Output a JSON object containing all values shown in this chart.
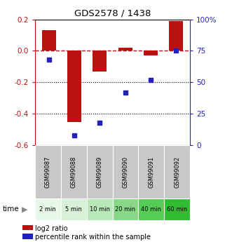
{
  "title": "GDS2578 / 1438",
  "samples": [
    "GSM99087",
    "GSM99088",
    "GSM99089",
    "GSM99090",
    "GSM99091",
    "GSM99092"
  ],
  "time_labels": [
    "2 min",
    "5 min",
    "10 min",
    "20 min",
    "40 min",
    "60 min"
  ],
  "log2_ratio": [
    0.13,
    -0.455,
    -0.13,
    0.018,
    -0.03,
    0.19
  ],
  "percentile_rank": [
    68,
    8,
    18,
    42,
    52,
    75
  ],
  "ylim_left": [
    -0.6,
    0.2
  ],
  "ylim_right": [
    0,
    100
  ],
  "yticks_left": [
    0.2,
    0.0,
    -0.2,
    -0.4,
    -0.6
  ],
  "yticks_right": [
    100,
    75,
    50,
    25,
    0
  ],
  "bar_color": "#bb1111",
  "dot_color": "#2222bb",
  "cell_color_gsm": "#c8c8c8",
  "cell_colors_time": [
    "#e8f8e8",
    "#d8f0d8",
    "#b8e8b8",
    "#88d888",
    "#55cc55",
    "#33bb33"
  ],
  "legend_labels": [
    "log2 ratio",
    "percentile rank within the sample"
  ],
  "bar_width": 0.55
}
